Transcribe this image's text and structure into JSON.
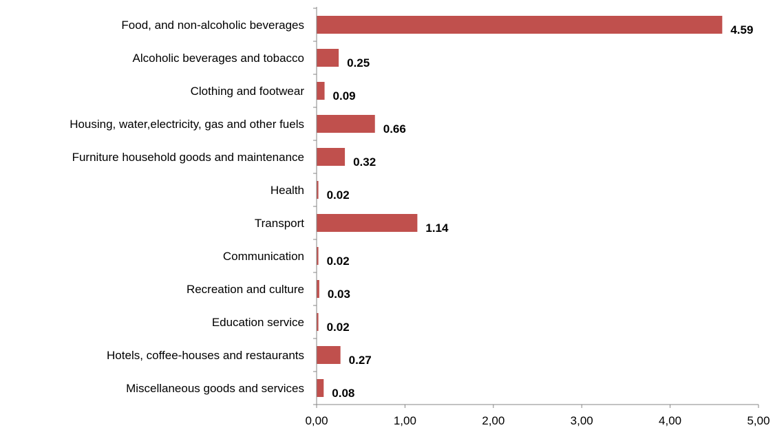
{
  "chart_data": {
    "type": "bar",
    "orientation": "horizontal",
    "categories": [
      "Food, and non-alcoholic beverages",
      "Alcoholic beverages and tobacco",
      "Clothing and footwear",
      "Housing, water,electricity, gas and other fuels",
      "Furniture  household goods and maintenance",
      "Health",
      "Transport",
      "Communication",
      "Recreation  and culture",
      "Education service",
      "Hotels, coffee-houses and restaurants",
      "Miscellaneous goods and services"
    ],
    "values": [
      4.59,
      0.25,
      0.09,
      0.66,
      0.32,
      0.02,
      1.14,
      0.02,
      0.03,
      0.02,
      0.27,
      0.08
    ],
    "value_labels": [
      "4.59",
      "0.25",
      "0.09",
      "0.66",
      "0.32",
      "0.02",
      "1.14",
      "0.02",
      "0.03",
      "0.02",
      "0.27",
      "0.08"
    ],
    "xticks": [
      "0,00",
      "1,00",
      "2,00",
      "3,00",
      "4,00",
      "5,00"
    ],
    "xlim": [
      0,
      5
    ],
    "grid": false,
    "legend": "none",
    "bar_color": "#c0504d",
    "axis_color": "#868686"
  }
}
